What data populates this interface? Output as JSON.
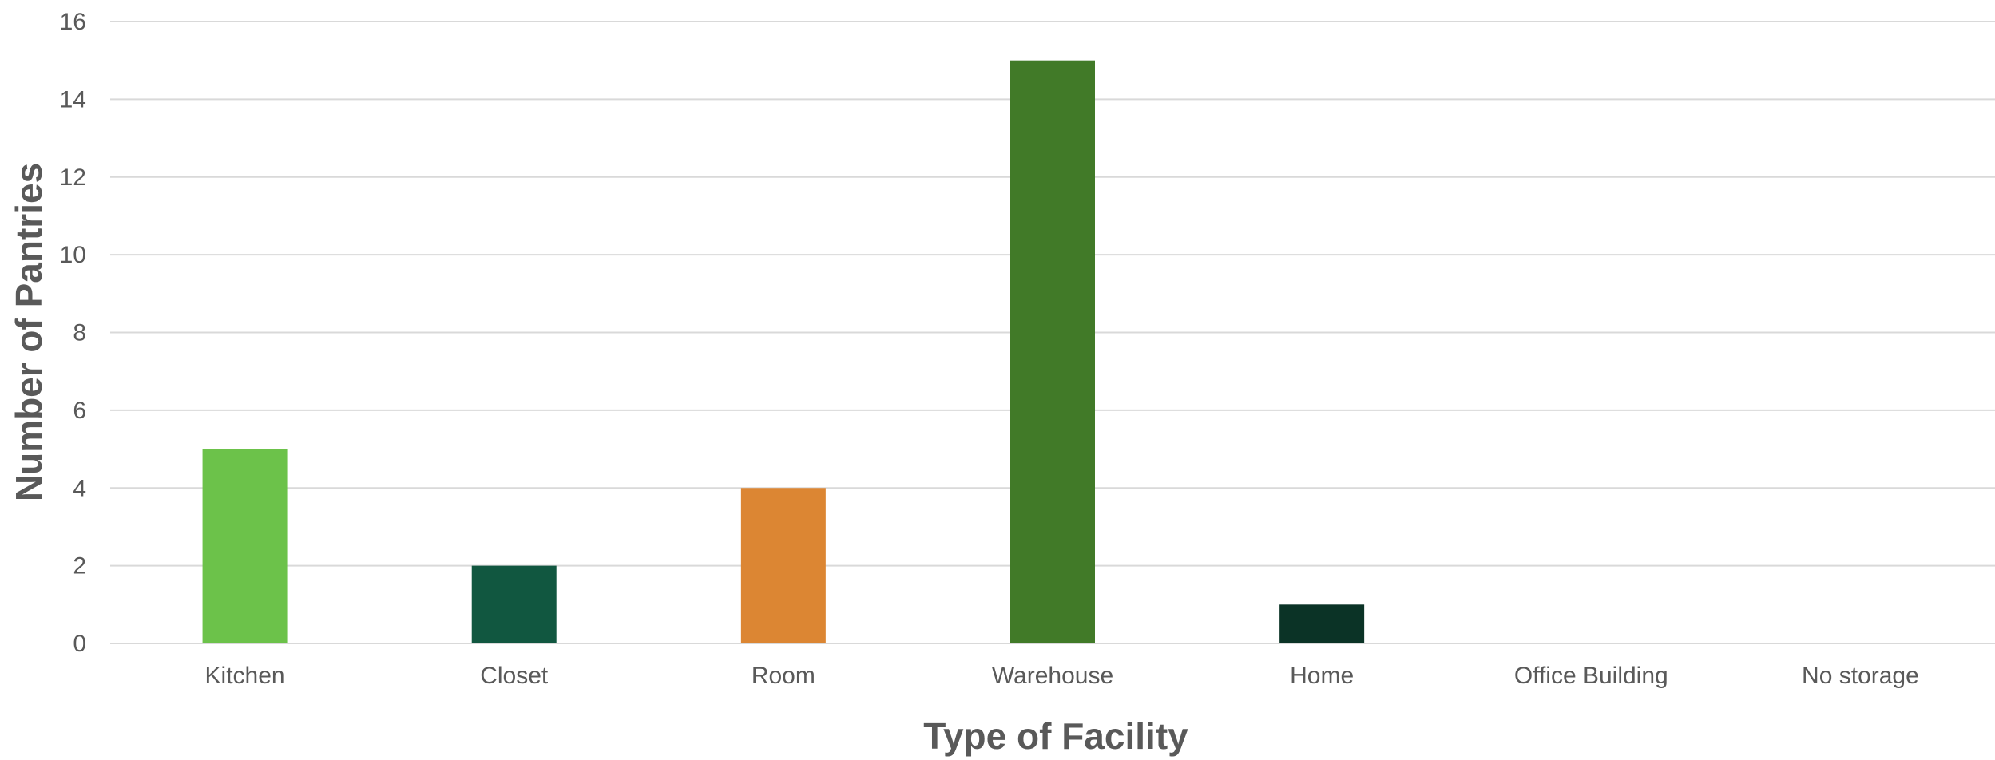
{
  "chart_data": {
    "type": "bar",
    "categories": [
      "Kitchen",
      "Closet",
      "Room",
      "Warehouse",
      "Home",
      "Office Building",
      "No storage"
    ],
    "values": [
      5,
      2,
      4,
      15,
      1,
      0,
      0
    ],
    "colors": [
      "#6cc24a",
      "#115740",
      "#dc8633",
      "#417a28",
      "#0b3326",
      "#6cc24a",
      "#6cc24a"
    ],
    "title": "",
    "xlabel": "Type of Facility",
    "ylabel": "Number of Pantries",
    "ylim": [
      0,
      16
    ],
    "yticks": [
      "0",
      "2",
      "4",
      "6",
      "8",
      "10",
      "12",
      "14",
      "16"
    ],
    "grid": "horizontal",
    "legend": "none"
  }
}
